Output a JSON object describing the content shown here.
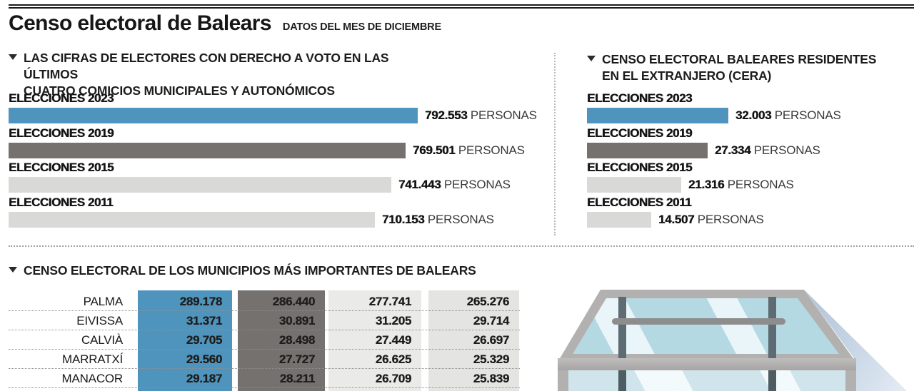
{
  "header": {
    "title": "Censo electoral de Balears",
    "subtitle": "DATOS DEL MES DE DICIEMBRE"
  },
  "colors": {
    "accent_blue": "#4f94bd",
    "dark_gray": "#74716e",
    "light_gray_bar": "#d9d9d7",
    "table_light_1": "#eaeae8",
    "table_light_2": "#e4e4e2",
    "text": "#1a1a1a"
  },
  "chart_data": [
    {
      "type": "bar",
      "id": "municipal",
      "title_lines": [
        "LAS CIFRAS DE ELECTORES CON DERECHO A VOTO EN LAS ÚLTIMOS",
        "CUATRO COMICIOS MUNICIPALES Y AUTONÓMICOS"
      ],
      "orientation": "horizontal",
      "categories": [
        "ELECCIONES 2023",
        "ELECCIONES 2019",
        "ELECCIONES 2015",
        "ELECCIONES 2011"
      ],
      "values": [
        792553,
        769501,
        741443,
        710153
      ],
      "value_labels": [
        "792.553",
        "769.501",
        "741.443",
        "710.153"
      ],
      "unit": "PERSONAS",
      "bar_colors": [
        "#4f94bd",
        "#74716e",
        "#d9d9d7",
        "#d9d9d7"
      ],
      "xlim": [
        0,
        800000
      ],
      "grid": false,
      "legend": false
    },
    {
      "type": "bar",
      "id": "cera",
      "title_lines": [
        "CENSO ELECTORAL BALEARES RESIDENTES",
        "EN EL EXTRANJERO (CERA)"
      ],
      "orientation": "horizontal",
      "categories": [
        "ELECCIONES 2023",
        "ELECCIONES 2019",
        "ELECCIONES 2015",
        "ELECCIONES 2011"
      ],
      "values": [
        32003,
        27334,
        21316,
        14507
      ],
      "value_labels": [
        "32.003",
        "27.334",
        "21.316",
        "14.507"
      ],
      "unit": "PERSONAS",
      "bar_colors": [
        "#4f94bd",
        "#74716e",
        "#d9d9d7",
        "#d9d9d7"
      ],
      "xlim": [
        0,
        32003
      ],
      "grid": false,
      "legend": false
    },
    {
      "type": "table",
      "id": "municipios",
      "title": "CENSO ELECTORAL DE LOS MUNICIPIOS MÁS IMPORTANTES DE BALEARS",
      "column_fills": [
        "#4f94bd",
        "#74716e",
        "#eaeae8",
        "#e4e4e2"
      ],
      "rows": [
        {
          "name": "PALMA",
          "values": [
            "289.178",
            "286.440",
            "277.741",
            "265.276"
          ]
        },
        {
          "name": "EIVISSA",
          "values": [
            "31.371",
            "30.891",
            "31.205",
            "29.714"
          ]
        },
        {
          "name": "CALVIÀ",
          "values": [
            "29.705",
            "28.498",
            "27.449",
            "26.697"
          ]
        },
        {
          "name": "MARRATXÍ",
          "values": [
            "29.560",
            "27.727",
            "26.625",
            "25.329"
          ]
        },
        {
          "name": "MANACOR",
          "values": [
            "29.187",
            "28.211",
            "26.709",
            "25.839"
          ]
        }
      ]
    }
  ]
}
